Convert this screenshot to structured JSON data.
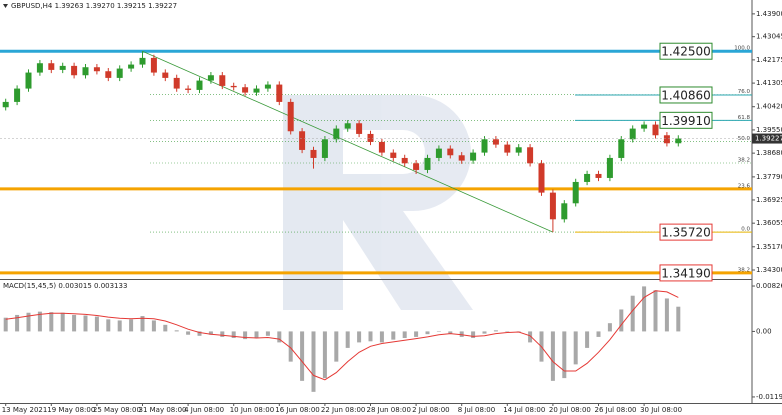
{
  "chart_data": {
    "type": "candlestick",
    "title": "GBPUSD,H4  1.39263 1.39270 1.39215 1.39227",
    "up_color": "#2e9b2e",
    "down_color": "#d03a2a",
    "categories": [
      "13 May 2021",
      null,
      null,
      null,
      "19 May 08:00",
      null,
      null,
      null,
      "25 May 08:00",
      null,
      null,
      null,
      "31 May 08:00",
      null,
      null,
      null,
      "4 Jun 08:00",
      null,
      null,
      null,
      "10 Jun 08:00",
      null,
      null,
      null,
      "16 Jun 08:00",
      null,
      null,
      null,
      "22 Jun 08:00",
      null,
      null,
      null,
      "28 Jun 08:00",
      null,
      null,
      null,
      "2 Jul 08:00",
      null,
      null,
      null,
      "8 Jul 08:00",
      null,
      null,
      null,
      "14 Jul 08:00",
      null,
      null,
      null,
      "20 Jul 08:00",
      null,
      null,
      null,
      "26 Jul 08:00",
      null,
      null,
      null,
      "30 Jul 08:00",
      null,
      null,
      null
    ],
    "open": [
      1.404,
      1.406,
      1.411,
      1.417,
      1.4205,
      1.418,
      1.4195,
      1.416,
      1.419,
      1.4175,
      1.415,
      1.4185,
      1.42,
      1.4225,
      1.417,
      1.415,
      1.411,
      1.4105,
      1.414,
      1.416,
      1.412,
      1.4115,
      1.4095,
      1.411,
      1.4125,
      1.406,
      1.395,
      1.388,
      1.385,
      1.392,
      1.396,
      1.398,
      1.394,
      1.391,
      1.387,
      1.385,
      1.383,
      1.3805,
      1.385,
      1.3885,
      1.386,
      1.384,
      1.387,
      1.392,
      1.39,
      1.387,
      1.389,
      1.383,
      1.372,
      1.362,
      1.368,
      1.376,
      1.379,
      1.3775,
      1.385,
      1.392,
      1.396,
      1.3975,
      1.3935,
      1.3905
    ],
    "high": [
      1.4072,
      1.4122,
      1.4182,
      1.4217,
      1.4217,
      1.4207,
      1.4207,
      1.4202,
      1.4202,
      1.4187,
      1.4197,
      1.4212,
      1.425,
      1.4237,
      1.4182,
      1.4162,
      1.4122,
      1.4152,
      1.4172,
      1.4172,
      1.4132,
      1.4127,
      1.4122,
      1.4137,
      1.4137,
      1.4072,
      1.3962,
      1.3892,
      1.3932,
      1.3972,
      1.3992,
      1.3992,
      1.3952,
      1.3922,
      1.3882,
      1.3862,
      1.3842,
      1.3862,
      1.3897,
      1.3897,
      1.3872,
      1.3882,
      1.3932,
      1.3932,
      1.3912,
      1.3902,
      1.3902,
      1.3842,
      1.3732,
      1.3692,
      1.3772,
      1.3802,
      1.3802,
      1.3862,
      1.3932,
      1.3972,
      1.3987,
      1.3987,
      1.3947,
      1.3935
    ],
    "low": [
      1.4028,
      1.4048,
      1.4098,
      1.4158,
      1.4168,
      1.4168,
      1.4148,
      1.4148,
      1.4163,
      1.4138,
      1.4138,
      1.4173,
      1.4188,
      1.4158,
      1.4138,
      1.4098,
      1.4093,
      1.4093,
      1.4128,
      1.4108,
      1.4103,
      1.4083,
      1.4083,
      1.4098,
      1.4048,
      1.3938,
      1.3868,
      1.381,
      1.3838,
      1.3908,
      1.3948,
      1.3928,
      1.3898,
      1.3858,
      1.3838,
      1.3818,
      1.379,
      1.3793,
      1.3838,
      1.3848,
      1.3828,
      1.3828,
      1.3858,
      1.3888,
      1.3858,
      1.3858,
      1.3818,
      1.3708,
      1.3572,
      1.3608,
      1.3668,
      1.3748,
      1.3763,
      1.3763,
      1.3838,
      1.3908,
      1.3948,
      1.3923,
      1.3893,
      1.3893
    ],
    "close": [
      1.406,
      1.411,
      1.417,
      1.4205,
      1.418,
      1.4195,
      1.416,
      1.419,
      1.4175,
      1.415,
      1.4185,
      1.42,
      1.4225,
      1.417,
      1.415,
      1.411,
      1.4105,
      1.414,
      1.416,
      1.412,
      1.4115,
      1.4095,
      1.411,
      1.4125,
      1.406,
      1.395,
      1.388,
      1.385,
      1.392,
      1.396,
      1.398,
      1.394,
      1.391,
      1.387,
      1.385,
      1.383,
      1.3805,
      1.385,
      1.3885,
      1.386,
      1.384,
      1.387,
      1.392,
      1.39,
      1.387,
      1.389,
      1.383,
      1.372,
      1.362,
      1.368,
      1.376,
      1.379,
      1.3775,
      1.385,
      1.392,
      1.396,
      1.3975,
      1.3935,
      1.3905,
      1.3923
    ],
    "ylim": [
      1.34,
      1.4442
    ],
    "yticks": [
      {
        "value": 1.439,
        "label": "1.43900"
      },
      {
        "value": 1.43045,
        "label": "1.43045"
      },
      {
        "value": 1.42175,
        "label": "1.42175"
      },
      {
        "value": 1.41305,
        "label": "1.41305"
      },
      {
        "value": 1.4042,
        "label": "1.40420"
      },
      {
        "value": 1.3955,
        "label": "1.39550"
      },
      {
        "value": 1.3868,
        "label": "1.38680"
      },
      {
        "value": 1.3779,
        "label": "1.37790"
      },
      {
        "value": 1.36925,
        "label": "1.36925"
      },
      {
        "value": 1.36055,
        "label": "1.36055"
      },
      {
        "value": 1.3517,
        "label": "1.35170"
      },
      {
        "value": 1.343,
        "label": "1.34300"
      }
    ],
    "current_price": {
      "value": 1.39227,
      "label": "1.39227"
    },
    "trend_color": "#3a9a3a",
    "fib": [
      {
        "value": 1.425,
        "label": "100.0",
        "style": "dotted"
      },
      {
        "value": 1.4087,
        "label": "76.0",
        "style": "dotted"
      },
      {
        "value": 1.3991,
        "label": "61.8",
        "style": "dotted"
      },
      {
        "value": 1.3911,
        "label": "50.0",
        "style": "dotted"
      },
      {
        "value": 1.3831,
        "label": "38.2",
        "style": "dotted"
      },
      {
        "value": 1.3734,
        "label": "23.6",
        "style": "thick"
      },
      {
        "value": 1.3572,
        "label": "0.0",
        "style": "dotted"
      },
      {
        "value": 1.3419,
        "label": "38.2",
        "style": "dotted"
      }
    ],
    "levels": [
      {
        "value": 1.425,
        "label": "1.42500",
        "color": "#2aa6d6",
        "style": "thick",
        "box": "#2e8b2e"
      },
      {
        "value": 1.4086,
        "label": "1.40860",
        "color": "#2aa6b0",
        "style": "ray",
        "box": "#2e8b2e"
      },
      {
        "value": 1.3991,
        "label": "1.39910",
        "color": "#2aa6b0",
        "style": "ray",
        "box": "#2e8b2e"
      },
      {
        "value": 1.3572,
        "label": "1.35720",
        "color": "#e8b400",
        "style": "ray",
        "box": "#e53935"
      },
      {
        "value": 1.3419,
        "label": "1.34190",
        "color": "#f5a300",
        "style": "thick",
        "box": "#e53935"
      }
    ],
    "macd": {
      "label": "MACD(15,45,5) 0.003015 0.003133",
      "hist_color": "#a8a8a8",
      "signal_color": "#e53935",
      "ylim": [
        -0.01285,
        0.00918
      ],
      "yticks": [
        0.008264,
        {
          "value": 0,
          "label": "0.00"
        },
        -0.01193
      ],
      "histogram": [
        0.0025,
        0.003,
        0.0034,
        0.0036,
        0.0035,
        0.0034,
        0.003,
        0.0029,
        0.0027,
        0.0022,
        0.002,
        0.0022,
        0.0028,
        0.002,
        0.0012,
        0.0002,
        -0.0006,
        -0.0008,
        -0.0006,
        -0.001,
        -0.0012,
        -0.0014,
        -0.0012,
        -0.0008,
        -0.002,
        -0.0055,
        -0.009,
        -0.011,
        -0.0085,
        -0.0055,
        -0.003,
        -0.002,
        -0.0018,
        -0.002,
        -0.0015,
        -0.0012,
        -0.001,
        -0.0005,
        0.0,
        -0.0004,
        -0.001,
        -0.0012,
        -0.0004,
        0.0002,
        0.0,
        -0.0002,
        -0.002,
        -0.0055,
        -0.009,
        -0.0085,
        -0.006,
        -0.003,
        -0.001,
        0.0015,
        0.004,
        0.0065,
        0.0082,
        0.0075,
        0.006,
        0.0045
      ],
      "signal": [
        0.0022,
        0.0025,
        0.0028,
        0.0031,
        0.0033,
        0.0033,
        0.0032,
        0.0031,
        0.0029,
        0.0026,
        0.0024,
        0.0023,
        0.0024,
        0.0023,
        0.0019,
        0.0012,
        0.0004,
        -0.0002,
        -0.0005,
        -0.0007,
        -0.0009,
        -0.0011,
        -0.0012,
        -0.0011,
        -0.0014,
        -0.003,
        -0.0055,
        -0.008,
        -0.0088,
        -0.0075,
        -0.0055,
        -0.0038,
        -0.0027,
        -0.0022,
        -0.0019,
        -0.0016,
        -0.0013,
        -0.001,
        -0.0006,
        -0.0004,
        -0.0006,
        -0.0009,
        -0.0008,
        -0.0004,
        -0.0002,
        -0.0001,
        -0.0008,
        -0.0028,
        -0.0055,
        -0.0072,
        -0.0072,
        -0.0058,
        -0.0038,
        -0.0015,
        0.0012,
        0.0038,
        0.0062,
        0.0074,
        0.0072,
        0.0062
      ]
    }
  }
}
